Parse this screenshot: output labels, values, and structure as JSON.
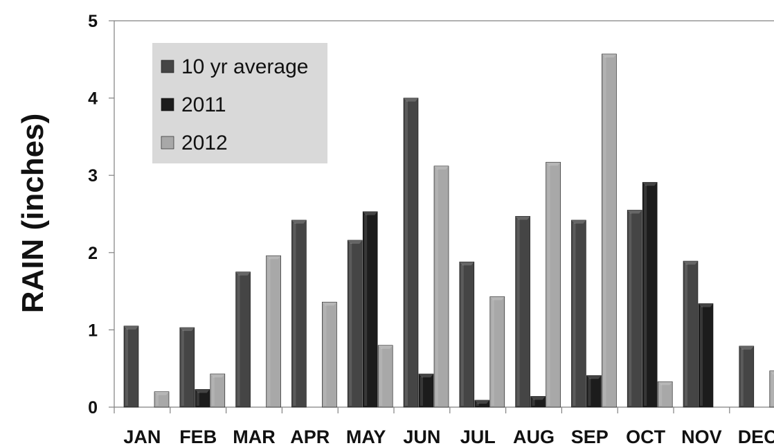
{
  "chart_data": {
    "type": "bar",
    "title": "",
    "xlabel": "",
    "ylabel": "RAIN (inches)",
    "ylim": [
      0,
      5
    ],
    "yticks": [
      "0",
      "1",
      "2",
      "3",
      "4",
      "5"
    ],
    "categories": [
      "JAN",
      "FEB",
      "MAR",
      "APR",
      "MAY",
      "JUN",
      "JUL",
      "AUG",
      "SEP",
      "OCT",
      "NOV",
      "DEC"
    ],
    "series": [
      {
        "name": "10 yr average",
        "color": "#454545",
        "values": [
          1.05,
          1.03,
          1.75,
          2.42,
          2.16,
          4.0,
          1.88,
          2.47,
          2.42,
          2.55,
          1.89,
          0.79
        ]
      },
      {
        "name": "2011",
        "color": "#1c1c1c",
        "values": [
          null,
          0.23,
          null,
          null,
          2.53,
          0.43,
          0.09,
          0.14,
          0.41,
          2.91,
          1.34,
          null
        ]
      },
      {
        "name": "2012",
        "color": "#a8a8a8",
        "values": [
          0.2,
          0.43,
          1.96,
          1.36,
          0.8,
          3.12,
          1.43,
          3.17,
          4.57,
          0.33,
          null,
          0.47
        ]
      }
    ],
    "grid": false,
    "legend_position": "top-left",
    "legend_background": "#d9d9d9"
  }
}
